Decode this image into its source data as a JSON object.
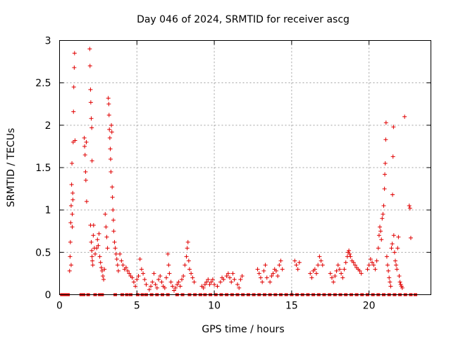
{
  "chart_data": {
    "type": "scatter",
    "title": "Day 046 of 2024, SRMTID for receiver ascg",
    "xlabel": "GPS time / hours",
    "ylabel": "SRMTID / TECUs",
    "xlim": [
      0,
      24
    ],
    "ylim": [
      0,
      3
    ],
    "grid": true,
    "marker": "+",
    "xticks": [
      0,
      5,
      10,
      15,
      20
    ],
    "yticks": [
      0,
      0.5,
      1,
      1.5,
      2,
      2.5,
      3
    ],
    "xtick_labels": [
      "0",
      "5",
      "10",
      "15",
      "20"
    ],
    "ytick_labels": [
      "0",
      "0.5",
      "1",
      "1.5",
      "2",
      "2.5",
      "3"
    ],
    "series_color": "#e00000",
    "series": [
      {
        "name": "SRMTID",
        "points": [
          [
            0.65,
            0.28
          ],
          [
            0.68,
            0.45
          ],
          [
            0.7,
            0.62
          ],
          [
            0.72,
            0.85
          ],
          [
            0.75,
            1.05
          ],
          [
            0.78,
            1.3
          ],
          [
            0.8,
            1.55
          ],
          [
            0.82,
            0.95
          ],
          [
            0.85,
            1.2
          ],
          [
            0.88,
            1.8
          ],
          [
            0.9,
            2.16
          ],
          [
            0.92,
            2.45
          ],
          [
            0.95,
            2.68
          ],
          [
            0.97,
            2.85
          ],
          [
            1.0,
            1.82
          ],
          [
            0.75,
            0.35
          ],
          [
            0.82,
            0.8
          ],
          [
            0.86,
            1.12
          ],
          [
            1.6,
            1.85
          ],
          [
            1.62,
            1.75
          ],
          [
            1.65,
            1.65
          ],
          [
            1.68,
            1.45
          ],
          [
            1.7,
            1.35
          ],
          [
            1.73,
            1.8
          ],
          [
            1.75,
            1.1
          ],
          [
            1.95,
            2.9
          ],
          [
            1.97,
            2.7
          ],
          [
            2.0,
            2.42
          ],
          [
            2.02,
            2.27
          ],
          [
            2.05,
            2.08
          ],
          [
            2.08,
            1.97
          ],
          [
            2.1,
            1.58
          ],
          [
            2.0,
            0.82
          ],
          [
            2.05,
            0.62
          ],
          [
            2.08,
            0.52
          ],
          [
            2.1,
            0.45
          ],
          [
            2.12,
            0.4
          ],
          [
            2.15,
            0.35
          ],
          [
            2.18,
            0.7
          ],
          [
            2.2,
            0.82
          ],
          [
            2.25,
            0.55
          ],
          [
            2.3,
            0.48
          ],
          [
            2.4,
            0.55
          ],
          [
            2.45,
            0.65
          ],
          [
            2.5,
            0.58
          ],
          [
            2.55,
            0.72
          ],
          [
            2.6,
            0.45
          ],
          [
            2.65,
            0.38
          ],
          [
            2.7,
            0.32
          ],
          [
            2.75,
            0.28
          ],
          [
            2.8,
            0.22
          ],
          [
            2.85,
            0.18
          ],
          [
            2.9,
            0.3
          ],
          [
            2.95,
            0.95
          ],
          [
            3.0,
            0.8
          ],
          [
            3.05,
            0.68
          ],
          [
            3.1,
            0.55
          ],
          [
            3.15,
            2.32
          ],
          [
            3.18,
            2.25
          ],
          [
            3.2,
            2.12
          ],
          [
            3.22,
            1.95
          ],
          [
            3.25,
            1.85
          ],
          [
            3.28,
            1.72
          ],
          [
            3.3,
            1.6
          ],
          [
            3.32,
            1.45
          ],
          [
            3.35,
            2.0
          ],
          [
            3.38,
            1.92
          ],
          [
            3.4,
            1.27
          ],
          [
            3.42,
            1.15
          ],
          [
            3.45,
            1.0
          ],
          [
            3.48,
            0.88
          ],
          [
            3.5,
            0.75
          ],
          [
            3.55,
            0.62
          ],
          [
            3.6,
            0.55
          ],
          [
            3.65,
            0.48
          ],
          [
            3.7,
            0.42
          ],
          [
            3.75,
            0.35
          ],
          [
            3.8,
            0.28
          ],
          [
            3.9,
            0.48
          ],
          [
            4.0,
            0.4
          ],
          [
            4.1,
            0.35
          ],
          [
            4.2,
            0.3
          ],
          [
            4.3,
            0.32
          ],
          [
            4.4,
            0.28
          ],
          [
            4.5,
            0.25
          ],
          [
            4.6,
            0.22
          ],
          [
            4.7,
            0.2
          ],
          [
            4.8,
            0.15
          ],
          [
            4.9,
            0.1
          ],
          [
            5.0,
            0.18
          ],
          [
            5.1,
            0.22
          ],
          [
            5.2,
            0.42
          ],
          [
            5.3,
            0.3
          ],
          [
            5.4,
            0.25
          ],
          [
            5.5,
            0.18
          ],
          [
            5.6,
            0.12
          ],
          [
            5.8,
            0.06
          ],
          [
            5.9,
            0.1
          ],
          [
            6.0,
            0.15
          ],
          [
            6.1,
            0.25
          ],
          [
            6.2,
            0.12
          ],
          [
            6.3,
            0.08
          ],
          [
            6.4,
            0.18
          ],
          [
            6.5,
            0.22
          ],
          [
            6.6,
            0.15
          ],
          [
            6.7,
            0.1
          ],
          [
            6.8,
            0.08
          ],
          [
            6.9,
            0.2
          ],
          [
            7.0,
            0.48
          ],
          [
            7.05,
            0.35
          ],
          [
            7.1,
            0.25
          ],
          [
            7.2,
            0.15
          ],
          [
            7.3,
            0.1
          ],
          [
            7.4,
            0.05
          ],
          [
            7.5,
            0.08
          ],
          [
            7.6,
            0.12
          ],
          [
            7.7,
            0.15
          ],
          [
            7.8,
            0.1
          ],
          [
            7.9,
            0.18
          ],
          [
            8.0,
            0.22
          ],
          [
            8.1,
            0.35
          ],
          [
            8.2,
            0.45
          ],
          [
            8.25,
            0.55
          ],
          [
            8.3,
            0.62
          ],
          [
            8.35,
            0.4
          ],
          [
            8.4,
            0.3
          ],
          [
            8.5,
            0.25
          ],
          [
            8.6,
            0.2
          ],
          [
            8.7,
            0.15
          ],
          [
            9.2,
            0.1
          ],
          [
            9.3,
            0.08
          ],
          [
            9.4,
            0.12
          ],
          [
            9.5,
            0.15
          ],
          [
            9.6,
            0.18
          ],
          [
            9.7,
            0.12
          ],
          [
            9.8,
            0.15
          ],
          [
            9.9,
            0.18
          ],
          [
            10.0,
            0.12
          ],
          [
            10.2,
            0.1
          ],
          [
            10.4,
            0.15
          ],
          [
            10.5,
            0.2
          ],
          [
            10.6,
            0.18
          ],
          [
            10.8,
            0.22
          ],
          [
            10.9,
            0.25
          ],
          [
            11.0,
            0.2
          ],
          [
            11.1,
            0.15
          ],
          [
            11.2,
            0.25
          ],
          [
            11.3,
            0.18
          ],
          [
            11.5,
            0.12
          ],
          [
            11.6,
            0.08
          ],
          [
            11.7,
            0.18
          ],
          [
            11.8,
            0.22
          ],
          [
            12.8,
            0.3
          ],
          [
            12.9,
            0.25
          ],
          [
            13.0,
            0.2
          ],
          [
            13.1,
            0.15
          ],
          [
            13.2,
            0.28
          ],
          [
            13.3,
            0.35
          ],
          [
            13.4,
            0.2
          ],
          [
            13.6,
            0.15
          ],
          [
            13.7,
            0.22
          ],
          [
            13.8,
            0.25
          ],
          [
            13.9,
            0.3
          ],
          [
            14.0,
            0.28
          ],
          [
            14.1,
            0.22
          ],
          [
            14.2,
            0.35
          ],
          [
            14.3,
            0.4
          ],
          [
            14.4,
            0.3
          ],
          [
            15.2,
            0.4
          ],
          [
            15.3,
            0.35
          ],
          [
            15.4,
            0.3
          ],
          [
            15.5,
            0.38
          ],
          [
            16.2,
            0.25
          ],
          [
            16.3,
            0.2
          ],
          [
            16.4,
            0.28
          ],
          [
            16.5,
            0.3
          ],
          [
            16.6,
            0.25
          ],
          [
            16.7,
            0.35
          ],
          [
            16.8,
            0.45
          ],
          [
            16.9,
            0.4
          ],
          [
            17.0,
            0.35
          ],
          [
            17.5,
            0.25
          ],
          [
            17.6,
            0.2
          ],
          [
            17.7,
            0.15
          ],
          [
            17.8,
            0.22
          ],
          [
            17.9,
            0.28
          ],
          [
            18.0,
            0.35
          ],
          [
            18.1,
            0.3
          ],
          [
            18.2,
            0.25
          ],
          [
            18.3,
            0.2
          ],
          [
            18.4,
            0.3
          ],
          [
            18.5,
            0.38
          ],
          [
            18.6,
            0.45
          ],
          [
            18.65,
            0.5
          ],
          [
            18.7,
            0.52
          ],
          [
            18.75,
            0.48
          ],
          [
            18.8,
            0.45
          ],
          [
            18.9,
            0.4
          ],
          [
            19.0,
            0.38
          ],
          [
            19.1,
            0.35
          ],
          [
            19.2,
            0.32
          ],
          [
            19.3,
            0.3
          ],
          [
            19.4,
            0.28
          ],
          [
            19.5,
            0.25
          ],
          [
            19.9,
            0.3
          ],
          [
            20.0,
            0.35
          ],
          [
            20.1,
            0.42
          ],
          [
            20.2,
            0.38
          ],
          [
            20.3,
            0.35
          ],
          [
            20.4,
            0.3
          ],
          [
            20.5,
            0.4
          ],
          [
            20.6,
            0.55
          ],
          [
            20.65,
            0.7
          ],
          [
            20.7,
            0.8
          ],
          [
            20.75,
            0.75
          ],
          [
            20.8,
            0.65
          ],
          [
            20.85,
            0.9
          ],
          [
            20.9,
            0.95
          ],
          [
            20.95,
            1.05
          ],
          [
            21.0,
            1.25
          ],
          [
            21.02,
            1.42
          ],
          [
            21.05,
            1.55
          ],
          [
            21.08,
            1.83
          ],
          [
            21.1,
            2.03
          ],
          [
            21.15,
            0.45
          ],
          [
            21.2,
            0.35
          ],
          [
            21.25,
            0.28
          ],
          [
            21.3,
            0.2
          ],
          [
            21.35,
            0.15
          ],
          [
            21.4,
            0.1
          ],
          [
            21.45,
            0.55
          ],
          [
            21.5,
            0.6
          ],
          [
            21.52,
            1.18
          ],
          [
            21.55,
            1.63
          ],
          [
            21.58,
            1.98
          ],
          [
            21.6,
            0.7
          ],
          [
            21.65,
            0.5
          ],
          [
            21.7,
            0.4
          ],
          [
            21.75,
            0.35
          ],
          [
            21.8,
            0.3
          ],
          [
            21.85,
            0.55
          ],
          [
            21.9,
            0.68
          ],
          [
            21.95,
            0.22
          ],
          [
            22.0,
            0.15
          ],
          [
            22.05,
            0.12
          ],
          [
            22.1,
            0.1
          ],
          [
            22.15,
            0.08
          ],
          [
            22.3,
            2.1
          ],
          [
            22.6,
            1.05
          ],
          [
            22.65,
            1.02
          ],
          [
            22.7,
            0.67
          ]
        ],
        "zero_points_x": [
          0.15,
          0.35,
          0.55,
          1.4,
          1.55,
          1.85,
          2.3,
          2.6,
          2.75,
          3.6,
          4.05,
          4.35,
          4.6,
          5.05,
          5.35,
          5.6,
          5.95,
          6.3,
          6.65,
          7.0,
          7.6,
          7.95,
          8.4,
          8.75,
          9.1,
          9.4,
          9.75,
          10.1,
          10.45,
          10.8,
          11.15,
          11.5,
          11.85,
          12.2,
          12.55,
          12.9,
          13.25,
          13.6,
          13.95,
          14.3,
          14.65,
          15.0,
          15.35,
          15.7,
          16.05,
          16.4,
          16.75,
          17.1,
          17.45,
          17.8,
          18.15,
          18.5,
          18.85,
          19.2,
          19.55,
          19.9,
          20.25,
          20.6,
          20.95,
          21.3,
          21.65,
          22.0,
          22.35,
          22.7,
          23.0
        ]
      }
    ]
  }
}
